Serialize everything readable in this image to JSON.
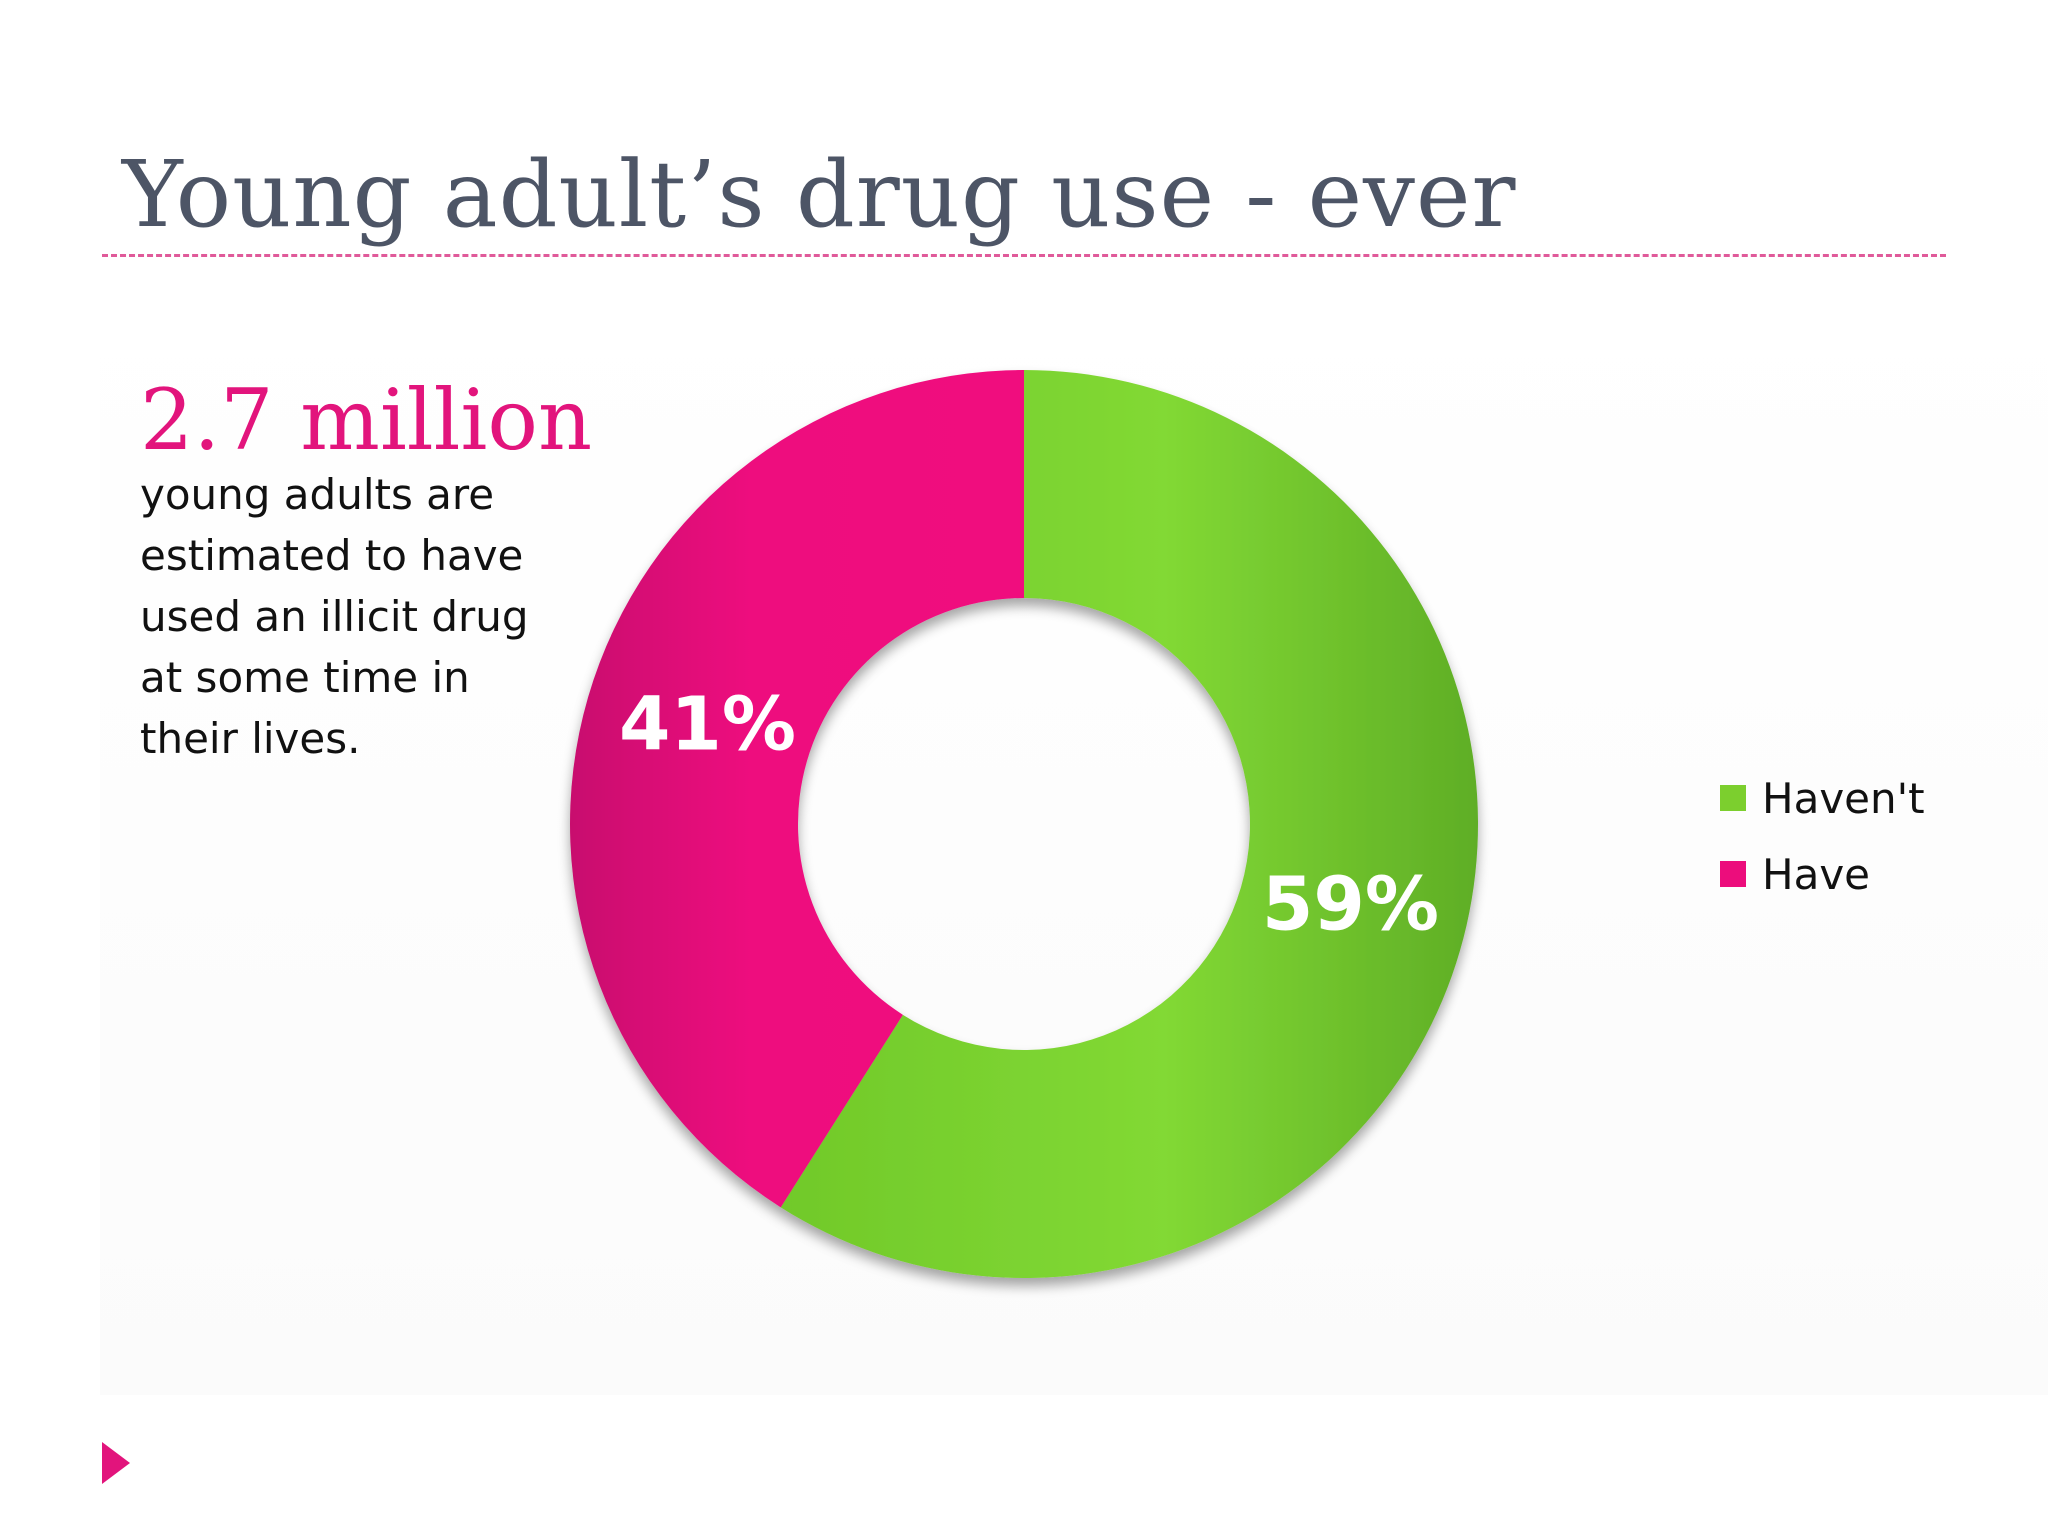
{
  "slide": {
    "title": "Young adult’s drug use - ever",
    "stat_value": "2.7 million",
    "stat_description": "young adults are estimated to have used an illicit drug at some time in their lives."
  },
  "colors": {
    "title": "#4d5566",
    "accent_pink": "#e2147c",
    "green": "#7ccf2e",
    "rule": "#e05a9a"
  },
  "icons": {
    "nav": "triangle-right-icon"
  },
  "chart_data": {
    "type": "pie",
    "donut": true,
    "title": "",
    "categories": [
      "Haven't",
      "Have"
    ],
    "values": [
      59,
      41
    ],
    "value_labels": [
      "59%",
      "41%"
    ],
    "colors": [
      "#7ccf2e",
      "#ec0d7c"
    ],
    "legend": {
      "placement": "right",
      "entries": [
        "Haven't",
        "Have"
      ]
    }
  }
}
